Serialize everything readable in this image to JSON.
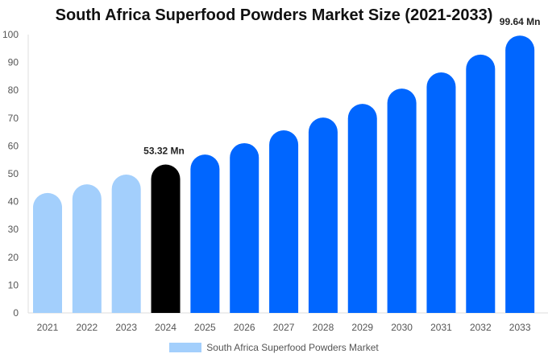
{
  "chart_data": {
    "type": "bar",
    "title": "South Africa Superfood Powders Market Size (2021-2033)",
    "categories": [
      "2021",
      "2022",
      "2023",
      "2024",
      "2025",
      "2026",
      "2027",
      "2028",
      "2029",
      "2030",
      "2031",
      "2032",
      "2033"
    ],
    "series": [
      {
        "name": "South Africa Superfood Powders Market",
        "values": [
          43.1,
          46.2,
          49.7,
          53.32,
          56.9,
          61.0,
          65.6,
          70.2,
          75.1,
          80.6,
          86.4,
          92.8,
          99.64
        ]
      }
    ],
    "data_labels": {
      "2024": "53.32 Mn",
      "2033": "99.64 Mn"
    },
    "ylim": [
      0,
      100
    ],
    "yticks": [
      0,
      10,
      20,
      30,
      40,
      50,
      60,
      70,
      80,
      90,
      100
    ],
    "grid": false,
    "legend": "bottom",
    "colors": {
      "historical": "#a3cffc",
      "current": "#000000",
      "forecast": "#0066ff"
    },
    "color_groups": [
      "historical",
      "historical",
      "historical",
      "current",
      "forecast",
      "forecast",
      "forecast",
      "forecast",
      "forecast",
      "forecast",
      "forecast",
      "forecast",
      "forecast"
    ]
  }
}
